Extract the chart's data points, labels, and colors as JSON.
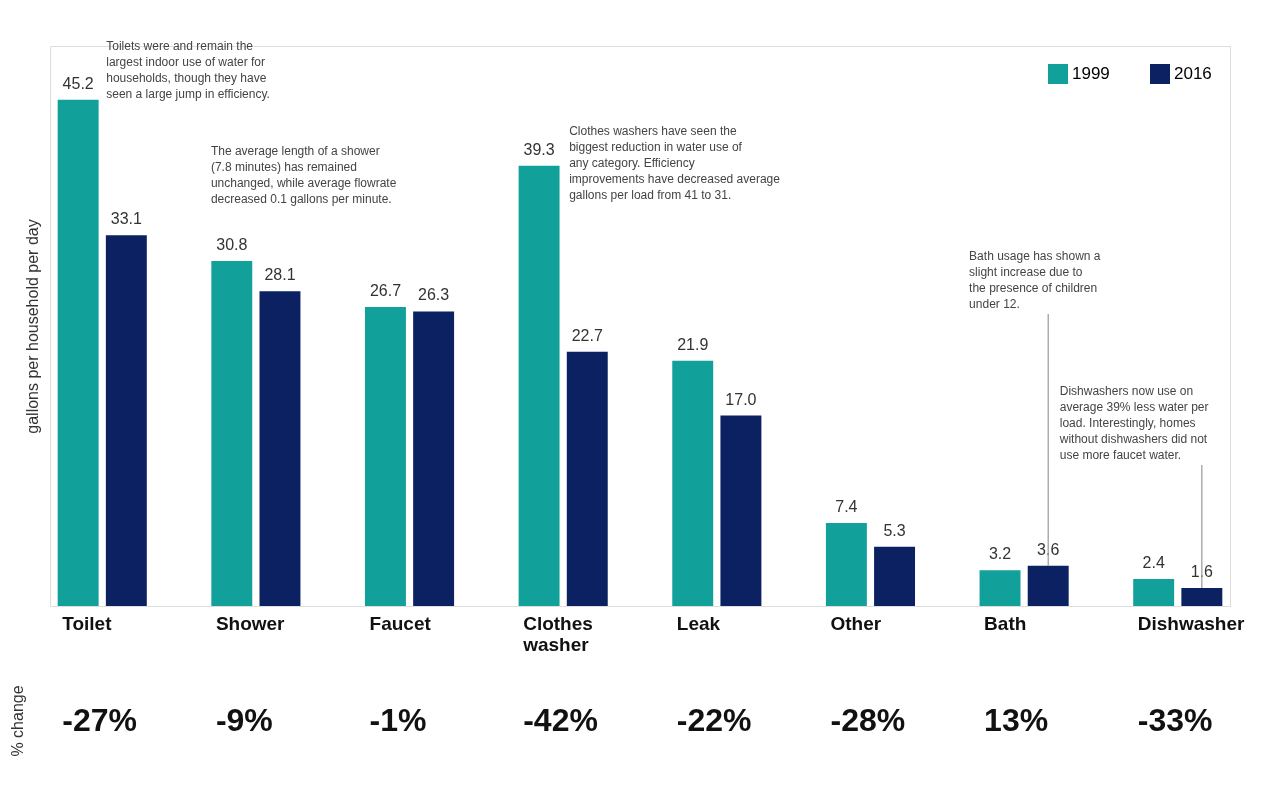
{
  "chart_data": {
    "type": "bar",
    "ylabel": "gallons per household per day",
    "categories": [
      "Toilet",
      "Shower",
      "Faucet",
      "Clothes washer",
      "Leak",
      "Other",
      "Bath",
      "Dishwasher"
    ],
    "series": [
      {
        "name": "1999",
        "color": "#12a09a",
        "values": [
          45.2,
          30.8,
          26.7,
          39.3,
          21.9,
          7.4,
          3.2,
          2.4
        ],
        "value_labels": [
          "45.2",
          "30.8",
          "26.7",
          "39.3",
          "21.9",
          "7.4",
          "3.2",
          "2.4"
        ]
      },
      {
        "name": "2016",
        "color": "#0b2161",
        "values": [
          33.1,
          28.1,
          26.3,
          22.7,
          17.0,
          5.3,
          3.6,
          1.6
        ],
        "value_labels": [
          "33.1",
          "28.1",
          "26.3",
          "22.7",
          "17.0",
          "5.3",
          "3.6",
          "1.6"
        ]
      }
    ],
    "legend": "top right",
    "grid": false,
    "annotations": [
      "Toilets were and remain the largest indoor use of water for households, though they have seen a large jump in efficiency.",
      "The average length of a shower (7.8 minutes) has remained unchanged, while average flowrate decreased 0.1 gallons per minute.",
      "Clothes washers have seen the biggest reduction in water use of any category. Efficiency improvements have decreased average gallons per load from 41 to 31.",
      "Bath usage has shown a slight increase due to the presence of children under 12.",
      "Dishwashers now use on average 39% less water per load. Interestingly, homes without dishwashers did not use more faucet water.",
      "% change",
      "-27%",
      "-9%",
      "-1%",
      "-42%",
      "-22%",
      "-28%",
      "13%",
      "-33%"
    ]
  }
}
